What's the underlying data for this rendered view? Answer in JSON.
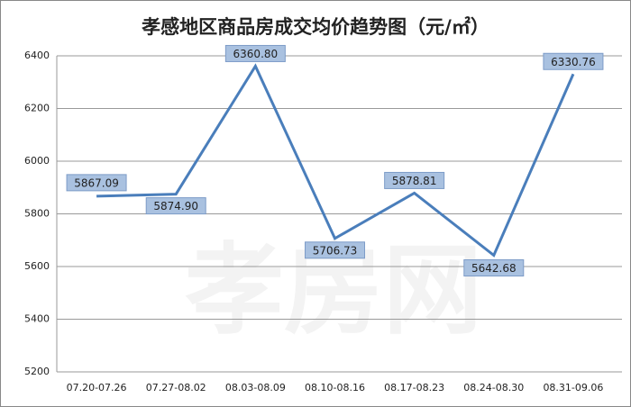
{
  "chart_data": {
    "type": "line",
    "title": "孝感地区商品房成交均价趋势图（元/㎡）",
    "watermark": "孝房网",
    "categories": [
      "07.20-07.26",
      "07.27-08.02",
      "08.03-08.09",
      "08.10-08.16",
      "08.17-08.23",
      "08.24-08.30",
      "08.31-09.06"
    ],
    "series": [
      {
        "color": "#4a7ebb",
        "values": [
          5867.09,
          5874.9,
          6360.8,
          5706.73,
          5878.81,
          5642.68,
          6330.76
        ],
        "value_labels": [
          "5867.09",
          "5874.90",
          "6360.80",
          "5706.73",
          "5878.81",
          "5642.68",
          "6330.76"
        ]
      }
    ],
    "ylim": [
      5200,
      6400
    ],
    "yticks": [
      5200,
      5400,
      5600,
      5800,
      6000,
      6200,
      6400
    ],
    "grid": true
  }
}
